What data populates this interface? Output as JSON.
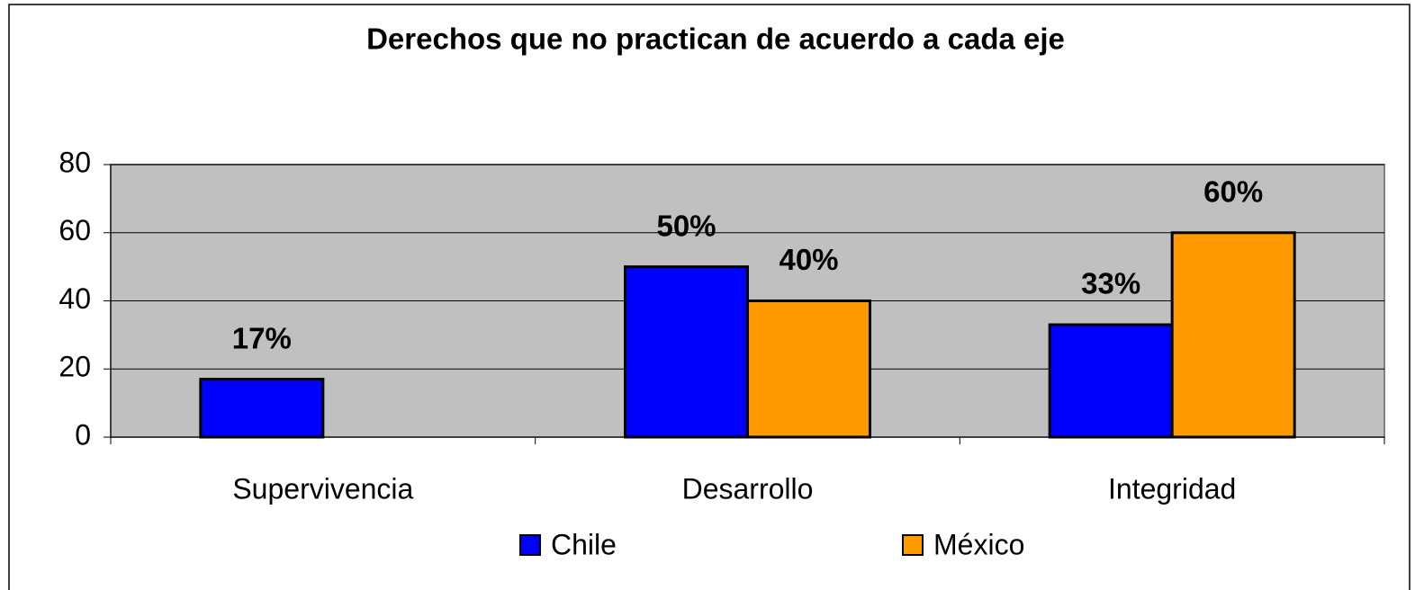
{
  "chart_data": {
    "type": "bar",
    "title": "Derechos que no practican de acuerdo a cada eje",
    "categories": [
      "Supervivencia",
      "Desarrollo",
      "Integridad"
    ],
    "series": [
      {
        "name": "Chile",
        "color": "#0000ff",
        "values": [
          17,
          50,
          33
        ],
        "value_labels": [
          "17%",
          "50%",
          "33%"
        ]
      },
      {
        "name": "México",
        "color": "#ff9900",
        "values": [
          null,
          40,
          60
        ],
        "value_labels": [
          null,
          "40%",
          "60%"
        ]
      }
    ],
    "ylim": [
      0,
      80
    ],
    "yticks": [
      0,
      20,
      40,
      60,
      80
    ],
    "grid": true,
    "legend": "bottom"
  }
}
